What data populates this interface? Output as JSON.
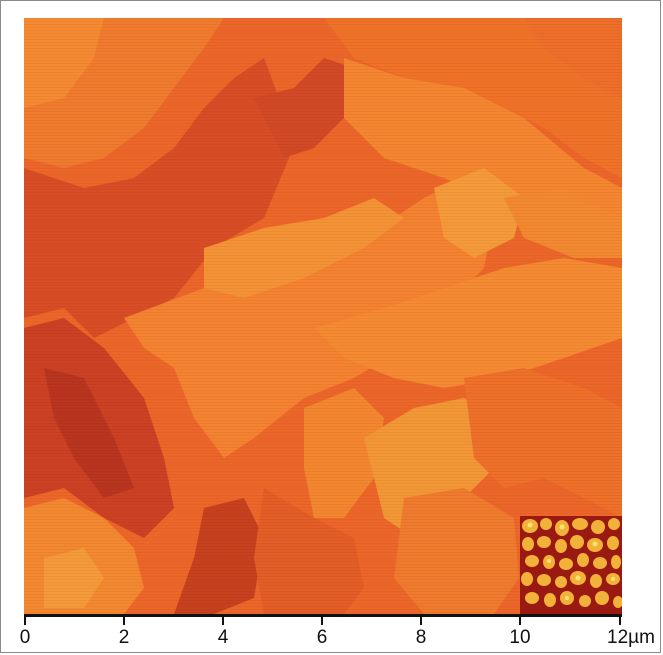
{
  "figure": {
    "tick_labels": [
      "0",
      "2",
      "4",
      "6",
      "8",
      "10",
      "12µm"
    ],
    "colors": {
      "terrace_base": "#ef6a2a",
      "terrace_light": "#f5892f",
      "terrace_dark": "#cf4324",
      "pit_darkest": "#b7321f",
      "inset_background": "#f2b23a",
      "inset_boundary": "#9a1a12"
    }
  }
}
